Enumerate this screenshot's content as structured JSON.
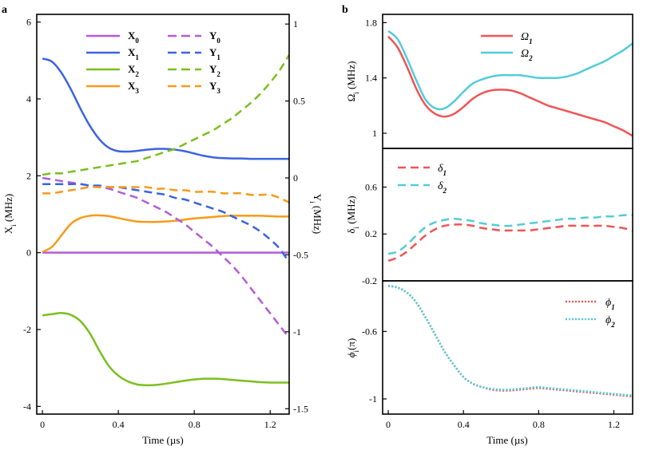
{
  "colors": {
    "purple": "#b35cd6",
    "blue": "#3b63e0",
    "green": "#7abf1e",
    "orange": "#f79a18",
    "red": "#f05454",
    "cyan": "#52ccd8"
  },
  "panel_a": {
    "label": "a",
    "xlabel": "Time (µs)",
    "ylabel_left": "X",
    "ylabel_left_sub": "i",
    "ylabel_left_unit": " (MHz)",
    "ylabel_right": "Y",
    "ylabel_right_sub": "i",
    "ylabel_right_unit": " (MHz)",
    "xticks": [
      "0",
      "0.4",
      "0.8",
      "1.2"
    ],
    "yticks_left": [
      "6",
      "4",
      "2",
      "0",
      "-2",
      "-4"
    ],
    "yticks_right": [
      "1",
      "0.5",
      "0",
      "-0.5",
      "-1",
      "-1.5"
    ],
    "legend": [
      {
        "base": "X",
        "sub": "0"
      },
      {
        "base": "X",
        "sub": "1"
      },
      {
        "base": "X",
        "sub": "2"
      },
      {
        "base": "X",
        "sub": "3"
      },
      {
        "base": "Y",
        "sub": "0"
      },
      {
        "base": "Y",
        "sub": "1"
      },
      {
        "base": "Y",
        "sub": "2"
      },
      {
        "base": "Y",
        "sub": "3"
      }
    ]
  },
  "panel_b": {
    "label": "b",
    "xlabel": "Time (µs)",
    "xticks": [
      "0",
      "0.4",
      "0.8",
      "1.2"
    ],
    "top": {
      "ylabel": "Ω",
      "ylabel_sub": "i",
      "ylabel_unit": " (MHz)",
      "yticks": [
        "1.8",
        "1.4",
        "1"
      ],
      "legend": [
        {
          "base": "Ω",
          "sub": "1"
        },
        {
          "base": "Ω",
          "sub": "2"
        }
      ]
    },
    "middle": {
      "ylabel": "δ",
      "ylabel_sub": "i",
      "ylabel_unit": " (MHz)",
      "yticks": [
        "0.6",
        "0.2",
        "-0.2"
      ],
      "legend": [
        {
          "base": "δ",
          "sub": "1"
        },
        {
          "base": "δ",
          "sub": "2"
        }
      ]
    },
    "bottom": {
      "ylabel": "ϕ",
      "ylabel_sub": "i",
      "ylabel_unit": "(π)",
      "yticks": [
        "-0.6",
        "-1"
      ],
      "legend": [
        {
          "base": "ϕ",
          "sub": "1"
        },
        {
          "base": "ϕ",
          "sub": "2"
        }
      ]
    }
  },
  "chart_data": [
    {
      "type": "line",
      "title": "a",
      "xlabel": "Time (µs)",
      "ylabel": "Xi (MHz)",
      "y2label": "Yi (MHz)",
      "xlim": [
        -0.03,
        1.3
      ],
      "ylim": [
        -4.2,
        6.2
      ],
      "y2lim": [
        -1.535,
        1.063
      ],
      "x": [
        0,
        0.05,
        0.1,
        0.15,
        0.2,
        0.25,
        0.3,
        0.35,
        0.4,
        0.45,
        0.5,
        0.55,
        0.6,
        0.65,
        0.7,
        0.75,
        0.8,
        0.85,
        0.9,
        0.95,
        1.0,
        1.05,
        1.1,
        1.15,
        1.2,
        1.25,
        1.3
      ],
      "series": [
        {
          "name": "X0",
          "axis": "left",
          "style": "solid",
          "color": "purple",
          "values": [
            0,
            0,
            0,
            0,
            0,
            0,
            0,
            0,
            0,
            0,
            0,
            0,
            0,
            0,
            0,
            0,
            0,
            0,
            0,
            0,
            0,
            0,
            0,
            0,
            0,
            0,
            0
          ]
        },
        {
          "name": "X1",
          "axis": "left",
          "style": "solid",
          "color": "blue",
          "values": [
            5.05,
            4.97,
            4.68,
            4.25,
            3.75,
            3.3,
            2.95,
            2.73,
            2.64,
            2.63,
            2.65,
            2.68,
            2.7,
            2.7,
            2.68,
            2.64,
            2.58,
            2.52,
            2.48,
            2.46,
            2.45,
            2.45,
            2.44,
            2.44,
            2.44,
            2.44,
            2.44
          ]
        },
        {
          "name": "X2",
          "axis": "left",
          "style": "solid",
          "color": "green",
          "values": [
            -1.63,
            -1.6,
            -1.57,
            -1.62,
            -1.78,
            -2.1,
            -2.55,
            -2.95,
            -3.2,
            -3.35,
            -3.43,
            -3.45,
            -3.44,
            -3.41,
            -3.37,
            -3.33,
            -3.3,
            -3.28,
            -3.28,
            -3.29,
            -3.31,
            -3.33,
            -3.35,
            -3.37,
            -3.38,
            -3.38,
            -3.38
          ]
        },
        {
          "name": "X3",
          "axis": "left",
          "style": "solid",
          "color": "orange",
          "values": [
            0.02,
            0.15,
            0.45,
            0.75,
            0.9,
            0.96,
            0.97,
            0.95,
            0.9,
            0.85,
            0.81,
            0.8,
            0.8,
            0.81,
            0.83,
            0.86,
            0.89,
            0.91,
            0.93,
            0.95,
            0.96,
            0.96,
            0.96,
            0.96,
            0.95,
            0.94,
            0.94
          ]
        },
        {
          "name": "Y0",
          "axis": "right",
          "style": "dashed",
          "color": "purple",
          "values": [
            0,
            -0.01,
            -0.02,
            -0.03,
            -0.04,
            -0.05,
            -0.06,
            -0.07,
            -0.09,
            -0.11,
            -0.13,
            -0.16,
            -0.19,
            -0.22,
            -0.26,
            -0.3,
            -0.35,
            -0.4,
            -0.45,
            -0.51,
            -0.57,
            -0.64,
            -0.72,
            -0.8,
            -0.88,
            -0.96,
            -1.04
          ]
        },
        {
          "name": "Y1",
          "axis": "right",
          "style": "dashed",
          "color": "blue",
          "values": [
            -0.04,
            -0.04,
            -0.04,
            -0.04,
            -0.04,
            -0.05,
            -0.05,
            -0.06,
            -0.06,
            -0.07,
            -0.08,
            -0.09,
            -0.1,
            -0.11,
            -0.13,
            -0.14,
            -0.16,
            -0.18,
            -0.2,
            -0.22,
            -0.25,
            -0.28,
            -0.31,
            -0.35,
            -0.4,
            -0.46,
            -0.55
          ]
        },
        {
          "name": "Y2",
          "axis": "right",
          "style": "dashed",
          "color": "green",
          "values": [
            0.02,
            0.03,
            0.03,
            0.04,
            0.05,
            0.06,
            0.07,
            0.08,
            0.09,
            0.1,
            0.11,
            0.13,
            0.15,
            0.17,
            0.19,
            0.22,
            0.25,
            0.28,
            0.31,
            0.35,
            0.39,
            0.44,
            0.49,
            0.55,
            0.62,
            0.7,
            0.8
          ]
        },
        {
          "name": "Y3",
          "axis": "right",
          "style": "dashed",
          "color": "orange",
          "values": [
            -0.1,
            -0.1,
            -0.09,
            -0.08,
            -0.07,
            -0.06,
            -0.06,
            -0.06,
            -0.06,
            -0.06,
            -0.06,
            -0.06,
            -0.07,
            -0.07,
            -0.08,
            -0.08,
            -0.09,
            -0.09,
            -0.09,
            -0.1,
            -0.1,
            -0.1,
            -0.11,
            -0.11,
            -0.11,
            -0.13,
            -0.16
          ]
        }
      ]
    },
    {
      "type": "line",
      "title": "b (top)",
      "ylabel": "Ωi (MHz)",
      "xlim": [
        -0.03,
        1.3
      ],
      "ylim": [
        0.89,
        1.86
      ],
      "x": [
        0,
        0.05,
        0.1,
        0.15,
        0.2,
        0.25,
        0.3,
        0.35,
        0.4,
        0.45,
        0.5,
        0.55,
        0.6,
        0.65,
        0.7,
        0.75,
        0.8,
        0.85,
        0.9,
        0.95,
        1.0,
        1.05,
        1.1,
        1.15,
        1.2,
        1.25,
        1.3
      ],
      "series": [
        {
          "name": "Ω1",
          "style": "solid",
          "color": "red",
          "values": [
            1.7,
            1.62,
            1.48,
            1.32,
            1.2,
            1.14,
            1.12,
            1.14,
            1.19,
            1.25,
            1.29,
            1.31,
            1.315,
            1.31,
            1.29,
            1.26,
            1.23,
            1.2,
            1.18,
            1.16,
            1.14,
            1.12,
            1.1,
            1.08,
            1.05,
            1.02,
            0.98
          ]
        },
        {
          "name": "Ω2",
          "style": "solid",
          "color": "cyan",
          "values": [
            1.74,
            1.68,
            1.54,
            1.38,
            1.24,
            1.18,
            1.18,
            1.23,
            1.3,
            1.36,
            1.39,
            1.41,
            1.42,
            1.42,
            1.42,
            1.41,
            1.4,
            1.4,
            1.4,
            1.41,
            1.43,
            1.46,
            1.49,
            1.52,
            1.56,
            1.6,
            1.65
          ]
        }
      ]
    },
    {
      "type": "line",
      "title": "b (middle)",
      "ylabel": "δi (MHz)",
      "xlim": [
        -0.03,
        1.3
      ],
      "ylim": [
        -0.2,
        0.93
      ],
      "x": [
        0,
        0.05,
        0.1,
        0.15,
        0.2,
        0.25,
        0.3,
        0.35,
        0.4,
        0.45,
        0.5,
        0.55,
        0.6,
        0.65,
        0.7,
        0.75,
        0.8,
        0.85,
        0.9,
        0.95,
        1.0,
        1.05,
        1.1,
        1.15,
        1.2,
        1.25,
        1.3
      ],
      "series": [
        {
          "name": "δ1",
          "style": "dashed",
          "color": "red",
          "values": [
            -0.03,
            0,
            0.05,
            0.12,
            0.19,
            0.24,
            0.27,
            0.28,
            0.28,
            0.27,
            0.25,
            0.24,
            0.23,
            0.23,
            0.23,
            0.23,
            0.24,
            0.25,
            0.26,
            0.27,
            0.27,
            0.27,
            0.27,
            0.27,
            0.26,
            0.25,
            0.23
          ]
        },
        {
          "name": "δ2",
          "style": "dashed",
          "color": "cyan",
          "values": [
            0.03,
            0.05,
            0.11,
            0.19,
            0.26,
            0.3,
            0.32,
            0.33,
            0.32,
            0.31,
            0.29,
            0.28,
            0.27,
            0.27,
            0.28,
            0.29,
            0.3,
            0.31,
            0.32,
            0.33,
            0.33,
            0.34,
            0.34,
            0.35,
            0.35,
            0.36,
            0.36
          ]
        }
      ]
    },
    {
      "type": "line",
      "title": "b (bottom)",
      "xlabel": "Time (µs)",
      "ylabel": "ϕi(π)",
      "xlim": [
        -0.03,
        1.3
      ],
      "ylim": [
        -1.09,
        -0.3
      ],
      "x": [
        0,
        0.05,
        0.1,
        0.15,
        0.2,
        0.25,
        0.3,
        0.35,
        0.4,
        0.45,
        0.5,
        0.55,
        0.6,
        0.65,
        0.7,
        0.75,
        0.8,
        0.85,
        0.9,
        0.95,
        1.0,
        1.05,
        1.1,
        1.15,
        1.2,
        1.25,
        1.3
      ],
      "series": [
        {
          "name": "ϕ1",
          "style": "dotted",
          "color": "red",
          "values": [
            -0.33,
            -0.34,
            -0.37,
            -0.43,
            -0.52,
            -0.62,
            -0.72,
            -0.8,
            -0.87,
            -0.91,
            -0.93,
            -0.945,
            -0.95,
            -0.95,
            -0.945,
            -0.94,
            -0.935,
            -0.94,
            -0.945,
            -0.95,
            -0.955,
            -0.96,
            -0.965,
            -0.97,
            -0.975,
            -0.98,
            -0.985
          ]
        },
        {
          "name": "ϕ2",
          "style": "dotted",
          "color": "cyan",
          "values": [
            -0.33,
            -0.34,
            -0.37,
            -0.43,
            -0.52,
            -0.62,
            -0.72,
            -0.8,
            -0.87,
            -0.91,
            -0.93,
            -0.94,
            -0.945,
            -0.945,
            -0.94,
            -0.935,
            -0.93,
            -0.935,
            -0.94,
            -0.945,
            -0.95,
            -0.955,
            -0.96,
            -0.965,
            -0.97,
            -0.975,
            -0.98
          ]
        }
      ]
    }
  ]
}
